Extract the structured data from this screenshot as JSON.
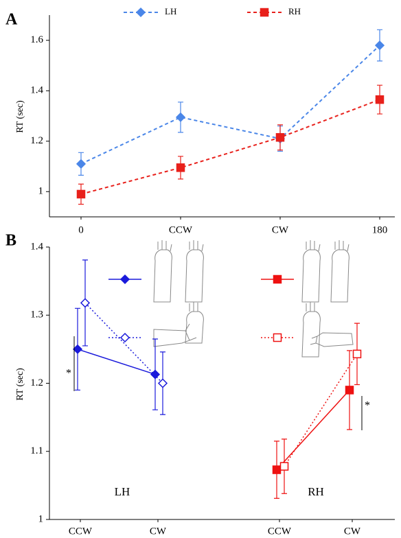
{
  "chart_data": [
    {
      "type": "line",
      "label": "A",
      "ylabel": "RT (sec)",
      "categories": [
        "0",
        "CCW",
        "CW",
        "180"
      ],
      "ylim": [
        0.9,
        1.7
      ],
      "yticks": [
        1,
        1.2,
        1.4,
        1.6
      ],
      "series": [
        {
          "name": "LH",
          "color": "#4a86e8",
          "marker": "diamond",
          "filled": true,
          "dash": "dash",
          "values": [
            1.11,
            1.295,
            1.21,
            1.58
          ],
          "errors": [
            0.045,
            0.06,
            0.05,
            0.062
          ]
        },
        {
          "name": "RH",
          "color": "#e8201b",
          "marker": "square",
          "filled": true,
          "dash": "dash",
          "values": [
            0.99,
            1.095,
            1.215,
            1.365
          ],
          "errors": [
            0.04,
            0.045,
            0.05,
            0.057
          ]
        }
      ]
    },
    {
      "type": "line",
      "label": "B",
      "ylabel": "RT (sec)",
      "categories": [
        "CCW",
        "CW",
        "CCW",
        "CW"
      ],
      "groups": [
        "LH",
        "RH"
      ],
      "ylim": [
        1,
        1.4
      ],
      "yticks": [
        1,
        1.1,
        1.2,
        1.3,
        1.4
      ],
      "annotations": [
        "*",
        "*"
      ],
      "series": [
        {
          "color": "#1a1adb",
          "marker": "diamond",
          "filled": true,
          "dash": "solid",
          "values": [
            1.25,
            1.213,
            null,
            null
          ],
          "errors": [
            0.06,
            0.052,
            null,
            null
          ]
        },
        {
          "color": "#1a1adb",
          "marker": "diamond",
          "filled": false,
          "dash": "dot",
          "values": [
            1.318,
            1.2,
            null,
            null
          ],
          "errors": [
            0.063,
            0.046,
            null,
            null
          ]
        },
        {
          "color": "#ee1111",
          "marker": "square",
          "filled": true,
          "dash": "solid",
          "values": [
            null,
            null,
            1.073,
            1.19
          ],
          "errors": [
            null,
            null,
            0.042,
            0.058
          ]
        },
        {
          "color": "#ee1111",
          "marker": "square",
          "filled": false,
          "dash": "dot",
          "values": [
            null,
            null,
            1.078,
            1.243
          ],
          "errors": [
            null,
            null,
            0.04,
            0.045
          ]
        }
      ]
    }
  ]
}
